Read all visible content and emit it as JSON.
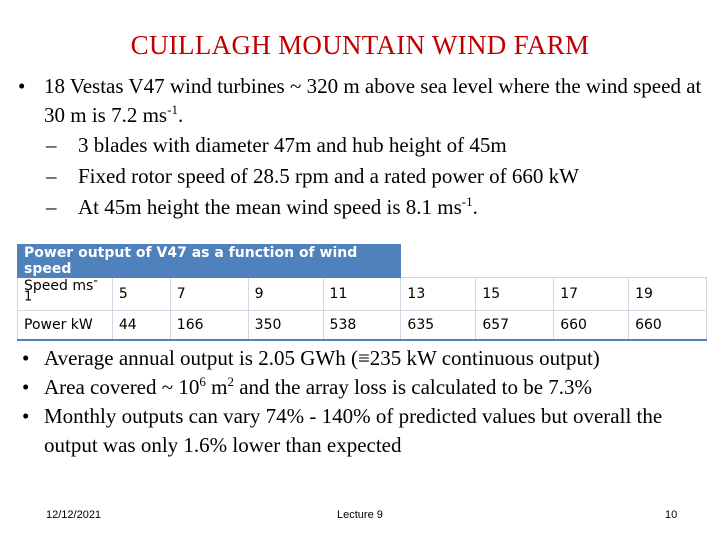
{
  "title": "CUILLAGH MOUNTAIN WIND FARM",
  "intro": {
    "main": [
      "18 Vestas V47 wind turbines ~ 320 m above sea level where the wind speed at 30 m is 7.2 ms",
      "-1",
      "."
    ],
    "subs": [
      {
        "text": "3 blades with diameter 47m and hub height of 45m"
      },
      {
        "text": "Fixed rotor speed of 28.5 rpm and a rated power of 660 kW"
      },
      {
        "text_before": "At 45m height the mean wind speed is 8.1 ms",
        "sup": "-1",
        "text_after": "."
      }
    ]
  },
  "table": {
    "header": "Power output of V47 as a function of wind speed",
    "speed_label": "Speed ms",
    "speed_sup": "-1",
    "speed_values": [
      "5",
      "7",
      "9",
      "11",
      "13",
      "15",
      "17",
      "19"
    ],
    "power_label": "Power kW",
    "power_values": [
      "44",
      "166",
      "350",
      "538",
      "635",
      "657",
      "660",
      "660"
    ]
  },
  "bullets": {
    "b1": "Average annual output is 2.05 GWh (≡235 kW continuous output)",
    "b2_before": "Area covered ~ 10",
    "b2_sup1": "6",
    "b2_mid": " m",
    "b2_sup2": "2",
    "b2_after": " and the array loss is calculated to be 7.3%",
    "b3": "Monthly outputs can vary 74% - 140% of predicted values but overall the output was only 1.6% lower than expected"
  },
  "footer": {
    "date": "12/12/2021",
    "center": "Lecture 9",
    "page": "10"
  }
}
